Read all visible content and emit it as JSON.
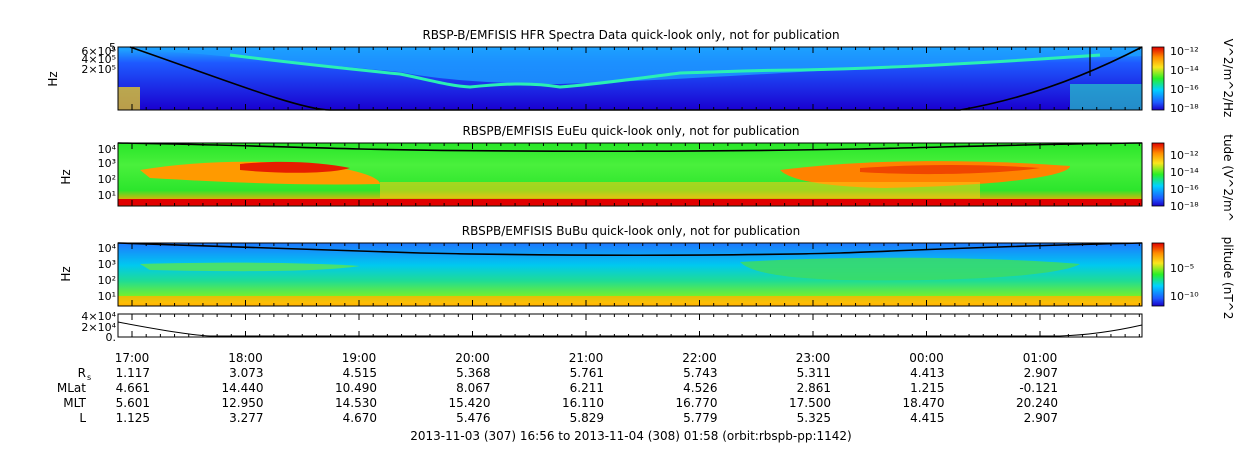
{
  "chart_data": [
    {
      "type": "heatmap",
      "title": "RBSP-B/EMFISIS  HFR Spectra Data quick-look only, not for publication",
      "ylabel": "Hz",
      "ylim": [
        10000,
        600000
      ],
      "yticks": [
        "6×10⁵",
        "4×10⁵",
        "2×10⁵",
        "5"
      ],
      "colorbar": {
        "label": "V^2/m^2/Hz",
        "ticks": [
          "10⁻¹²",
          "10⁻¹⁴",
          "10⁻¹⁶",
          "10⁻¹⁸"
        ]
      }
    },
    {
      "type": "heatmap",
      "title": "RBSPB/EMFISIS  EuEu quick-look only, not for publication",
      "ylabel": "Hz",
      "ylim": [
        2,
        10000
      ],
      "yticks": [
        "10⁴",
        "10³",
        "10²",
        "10¹"
      ],
      "colorbar": {
        "label": "tude (V^2/m^",
        "ticks": [
          "10⁻¹²",
          "10⁻¹⁴",
          "10⁻¹⁶",
          "10⁻¹⁸"
        ]
      }
    },
    {
      "type": "heatmap",
      "title": "RBSPB/EMFISIS  BuBu quick-look only, not for publication",
      "ylabel": "Hz",
      "ylim": [
        2,
        10000
      ],
      "yticks": [
        "10⁴",
        "10³",
        "10²",
        "10¹"
      ],
      "colorbar": {
        "label": "plitude (nT^2",
        "ticks": [
          "10⁻⁵",
          "10⁻¹⁰"
        ]
      }
    },
    {
      "type": "line",
      "title": "",
      "ylim": [
        0,
        40000
      ],
      "yticks": [
        "4×10⁴",
        "2×10⁴",
        "0."
      ]
    }
  ],
  "time_axis": {
    "labels": [
      "17:00",
      "18:00",
      "19:00",
      "20:00",
      "21:00",
      "22:00",
      "23:00",
      "00:00",
      "01:00"
    ]
  },
  "ephemeris": {
    "rows": [
      {
        "label": "R",
        "sub": "s",
        "values": [
          "1.117",
          "3.073",
          "4.515",
          "5.368",
          "5.761",
          "5.743",
          "5.311",
          "4.413",
          "2.907"
        ]
      },
      {
        "label": "MLat",
        "values": [
          "4.661",
          "14.440",
          "10.490",
          "8.067",
          "6.211",
          "4.526",
          "2.861",
          "1.215",
          "-0.121"
        ]
      },
      {
        "label": "MLT",
        "values": [
          "5.601",
          "12.950",
          "14.530",
          "15.420",
          "16.110",
          "16.770",
          "17.500",
          "18.470",
          "20.240"
        ]
      },
      {
        "label": "L",
        "values": [
          "1.125",
          "3.277",
          "4.670",
          "5.476",
          "5.829",
          "5.779",
          "5.325",
          "4.415",
          "2.907"
        ]
      }
    ]
  },
  "footer": "2013-11-03 (307) 16:56 to 2013-11-04 (308) 01:58 (orbit:rbspb-pp:1142)",
  "colors": {
    "deep": "#1a00c8",
    "blue": "#1e5aff",
    "cyan": "#00d2ff",
    "green": "#28f028",
    "yellow": "#fae61e",
    "orange": "#ff8c00",
    "red": "#e10000"
  }
}
